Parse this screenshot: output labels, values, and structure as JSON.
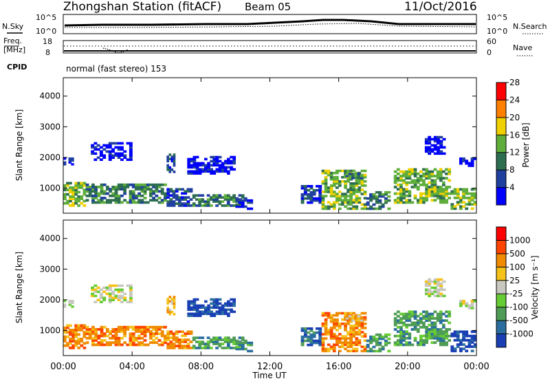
{
  "header": {
    "station": "Zhongshan Station (fitACF)",
    "beam": "Beam 05",
    "date": "11/Oct/2016"
  },
  "params_panel": {
    "left_top_label": "N.Sky",
    "left_top_ticks": [
      "10^5",
      "10^0"
    ],
    "right_top_label": "N.Search",
    "right_top_ticks": [
      "10^5",
      "10^0"
    ],
    "left_mid_label_1": "Freq.",
    "left_mid_label_2": "[MHz]",
    "left_mid_ticks": [
      "18",
      "8"
    ],
    "right_mid_label": "Nave",
    "right_mid_ticks": [
      "60",
      "0"
    ],
    "cpid_label": "CPID",
    "cpid_text": "normal (fast stereo) 153"
  },
  "chart_data": [
    {
      "type": "heatmap",
      "name": "power",
      "ylabel": "Slant Range [km]",
      "xlabel": "",
      "ylim": [
        180,
        4600
      ],
      "y_ticks": [
        1000,
        2000,
        3000,
        4000
      ],
      "xlim": [
        0,
        24
      ],
      "colorbar": {
        "label": "Power [dB]",
        "ticks": [
          "4",
          "8",
          "12",
          "16",
          "20",
          "24",
          "28"
        ],
        "colors": [
          "#0000ff",
          "#2040a0",
          "#2e6e50",
          "#5fae3c",
          "#f0d000",
          "#ff8000",
          "#ff0000"
        ]
      },
      "echo_regions": [
        {
          "t0": 0.0,
          "t1": 1.3,
          "r0": 400,
          "r1": 1200,
          "level": 3
        },
        {
          "t0": 1.3,
          "t1": 6.0,
          "r0": 500,
          "r1": 1150,
          "level": 2
        },
        {
          "t0": 6.0,
          "t1": 7.5,
          "r0": 400,
          "r1": 1000,
          "level": 1
        },
        {
          "t0": 7.5,
          "t1": 10.5,
          "r0": 400,
          "r1": 800,
          "level": 2
        },
        {
          "t0": 0.0,
          "t1": 0.6,
          "r0": 1750,
          "r1": 2000,
          "level": 1
        },
        {
          "t0": 1.6,
          "t1": 4.0,
          "r0": 1900,
          "r1": 2500,
          "level": 0
        },
        {
          "t0": 6.0,
          "t1": 6.5,
          "r0": 1500,
          "r1": 2200,
          "level": 1
        },
        {
          "t0": 7.2,
          "t1": 10.0,
          "r0": 1450,
          "r1": 2050,
          "level": 0
        },
        {
          "t0": 10.0,
          "t1": 11.0,
          "r0": 300,
          "r1": 700,
          "level": 1
        },
        {
          "t0": 13.8,
          "t1": 15.0,
          "r0": 500,
          "r1": 1100,
          "level": 1
        },
        {
          "t0": 15.0,
          "t1": 17.6,
          "r0": 300,
          "r1": 1600,
          "level": 3
        },
        {
          "t0": 16.4,
          "t1": 17.4,
          "r0": 1300,
          "r1": 1500,
          "level": 2
        },
        {
          "t0": 17.6,
          "t1": 19.0,
          "r0": 300,
          "r1": 900,
          "level": 2
        },
        {
          "t0": 19.2,
          "t1": 22.5,
          "r0": 500,
          "r1": 1650,
          "level": 3
        },
        {
          "t0": 21.0,
          "t1": 22.2,
          "r0": 2100,
          "r1": 2700,
          "level": 0
        },
        {
          "t0": 22.5,
          "t1": 24.0,
          "r0": 300,
          "r1": 1000,
          "level": 3
        },
        {
          "t0": 23.0,
          "t1": 24.0,
          "r0": 1700,
          "r1": 2000,
          "level": 0
        }
      ]
    },
    {
      "type": "heatmap",
      "name": "velocity",
      "ylabel": "Slant Range [km]",
      "xlabel": "Time UT",
      "ylim": [
        180,
        4600
      ],
      "y_ticks": [
        1000,
        2000,
        3000,
        4000
      ],
      "xlim": [
        0,
        24
      ],
      "x_ticks": [
        "00:00",
        "04:00",
        "08:00",
        "12:00",
        "16:00",
        "20:00",
        "00:00"
      ],
      "colorbar": {
        "label": "Velocity [m s⁻¹]",
        "ticks": [
          "1000",
          "500",
          "100",
          "25",
          "-25",
          "-100",
          "-500",
          "-1000"
        ],
        "colors": [
          "#1a3fb5",
          "#2a6ea0",
          "#4f9c56",
          "#66cc33",
          "#c8c8c0",
          "#f5c21a",
          "#f08a00",
          "#ff4400",
          "#ff0000"
        ]
      },
      "echo_regions": [
        {
          "t0": 0.0,
          "t1": 1.3,
          "r0": 400,
          "r1": 1200,
          "level": 6
        },
        {
          "t0": 1.3,
          "t1": 6.0,
          "r0": 500,
          "r1": 1150,
          "level": 6
        },
        {
          "t0": 6.0,
          "t1": 7.5,
          "r0": 400,
          "r1": 1000,
          "level": 6
        },
        {
          "t0": 7.5,
          "t1": 10.5,
          "r0": 400,
          "r1": 800,
          "level": 2
        },
        {
          "t0": 0.0,
          "t1": 0.6,
          "r0": 1750,
          "r1": 2000,
          "level": 4
        },
        {
          "t0": 1.6,
          "t1": 4.0,
          "r0": 1900,
          "r1": 2500,
          "level": 4
        },
        {
          "t0": 6.0,
          "t1": 6.5,
          "r0": 1500,
          "r1": 2200,
          "level": 5
        },
        {
          "t0": 7.2,
          "t1": 10.0,
          "r0": 1450,
          "r1": 2050,
          "level": 0
        },
        {
          "t0": 10.0,
          "t1": 11.0,
          "r0": 300,
          "r1": 700,
          "level": 2
        },
        {
          "t0": 13.8,
          "t1": 15.0,
          "r0": 500,
          "r1": 1100,
          "level": 1
        },
        {
          "t0": 15.0,
          "t1": 17.6,
          "r0": 300,
          "r1": 1600,
          "level": 6
        },
        {
          "t0": 16.4,
          "t1": 17.4,
          "r0": 1300,
          "r1": 1500,
          "level": 5
        },
        {
          "t0": 17.6,
          "t1": 19.0,
          "r0": 300,
          "r1": 900,
          "level": 2
        },
        {
          "t0": 19.2,
          "t1": 22.5,
          "r0": 500,
          "r1": 1650,
          "level": 2
        },
        {
          "t0": 21.0,
          "t1": 22.2,
          "r0": 2100,
          "r1": 2700,
          "level": 4
        },
        {
          "t0": 22.5,
          "t1": 24.0,
          "r0": 300,
          "r1": 1000,
          "level": 0
        },
        {
          "t0": 23.0,
          "t1": 24.0,
          "r0": 1700,
          "r1": 2000,
          "level": 4
        }
      ]
    }
  ]
}
